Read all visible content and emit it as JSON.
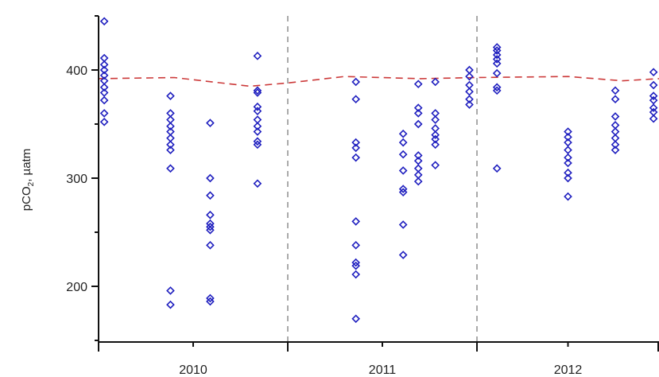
{
  "chart_data": {
    "type": "scatter",
    "title": "",
    "xlabel": "",
    "ylabel": "pCO",
    "ylabel_subscript": "2",
    "ylabel_unit": ", µatm",
    "ylim": [
      150,
      450
    ],
    "y_ticks": [
      200,
      300,
      400
    ],
    "x_periods": [
      "2010",
      "2011",
      "2012"
    ],
    "grid": false,
    "colors": {
      "points": "#1f1fbf",
      "reference_line": "#cc3a3a",
      "period_divider": "#555555",
      "axis": "#111111"
    },
    "series": [
      {
        "marker": "open-diamond",
        "points": [
          {
            "x": 0.03,
            "y": 445
          },
          {
            "x": 0.03,
            "y": 411
          },
          {
            "x": 0.03,
            "y": 405
          },
          {
            "x": 0.03,
            "y": 400
          },
          {
            "x": 0.03,
            "y": 395
          },
          {
            "x": 0.03,
            "y": 390
          },
          {
            "x": 0.03,
            "y": 384
          },
          {
            "x": 0.03,
            "y": 379
          },
          {
            "x": 0.03,
            "y": 372
          },
          {
            "x": 0.03,
            "y": 360
          },
          {
            "x": 0.03,
            "y": 352
          },
          {
            "x": 0.38,
            "y": 376
          },
          {
            "x": 0.38,
            "y": 360
          },
          {
            "x": 0.38,
            "y": 354
          },
          {
            "x": 0.38,
            "y": 348
          },
          {
            "x": 0.38,
            "y": 343
          },
          {
            "x": 0.38,
            "y": 337
          },
          {
            "x": 0.38,
            "y": 331
          },
          {
            "x": 0.38,
            "y": 326
          },
          {
            "x": 0.38,
            "y": 309
          },
          {
            "x": 0.38,
            "y": 196
          },
          {
            "x": 0.38,
            "y": 183
          },
          {
            "x": 0.59,
            "y": 351
          },
          {
            "x": 0.59,
            "y": 300
          },
          {
            "x": 0.59,
            "y": 284
          },
          {
            "x": 0.59,
            "y": 266
          },
          {
            "x": 0.59,
            "y": 258
          },
          {
            "x": 0.59,
            "y": 255
          },
          {
            "x": 0.59,
            "y": 252
          },
          {
            "x": 0.59,
            "y": 238
          },
          {
            "x": 0.59,
            "y": 189
          },
          {
            "x": 0.59,
            "y": 186
          },
          {
            "x": 0.84,
            "y": 413
          },
          {
            "x": 0.84,
            "y": 381
          },
          {
            "x": 0.84,
            "y": 379
          },
          {
            "x": 0.84,
            "y": 366
          },
          {
            "x": 0.84,
            "y": 362
          },
          {
            "x": 0.84,
            "y": 354
          },
          {
            "x": 0.84,
            "y": 348
          },
          {
            "x": 0.84,
            "y": 343
          },
          {
            "x": 0.84,
            "y": 334
          },
          {
            "x": 0.84,
            "y": 331
          },
          {
            "x": 0.84,
            "y": 295
          },
          {
            "x": 1.36,
            "y": 389
          },
          {
            "x": 1.36,
            "y": 373
          },
          {
            "x": 1.36,
            "y": 333
          },
          {
            "x": 1.36,
            "y": 328
          },
          {
            "x": 1.36,
            "y": 319
          },
          {
            "x": 1.36,
            "y": 260
          },
          {
            "x": 1.36,
            "y": 238
          },
          {
            "x": 1.36,
            "y": 222
          },
          {
            "x": 1.36,
            "y": 219
          },
          {
            "x": 1.36,
            "y": 211
          },
          {
            "x": 1.36,
            "y": 170
          },
          {
            "x": 1.61,
            "y": 341
          },
          {
            "x": 1.61,
            "y": 333
          },
          {
            "x": 1.61,
            "y": 322
          },
          {
            "x": 1.61,
            "y": 307
          },
          {
            "x": 1.61,
            "y": 290
          },
          {
            "x": 1.61,
            "y": 287
          },
          {
            "x": 1.61,
            "y": 257
          },
          {
            "x": 1.61,
            "y": 229
          },
          {
            "x": 1.69,
            "y": 387
          },
          {
            "x": 1.69,
            "y": 365
          },
          {
            "x": 1.69,
            "y": 360
          },
          {
            "x": 1.69,
            "y": 350
          },
          {
            "x": 1.69,
            "y": 321
          },
          {
            "x": 1.69,
            "y": 316
          },
          {
            "x": 1.69,
            "y": 309
          },
          {
            "x": 1.69,
            "y": 303
          },
          {
            "x": 1.69,
            "y": 297
          },
          {
            "x": 1.78,
            "y": 389
          },
          {
            "x": 1.78,
            "y": 360
          },
          {
            "x": 1.78,
            "y": 354
          },
          {
            "x": 1.78,
            "y": 346
          },
          {
            "x": 1.78,
            "y": 340
          },
          {
            "x": 1.78,
            "y": 336
          },
          {
            "x": 1.78,
            "y": 331
          },
          {
            "x": 1.78,
            "y": 312
          },
          {
            "x": 1.96,
            "y": 400
          },
          {
            "x": 1.96,
            "y": 394
          },
          {
            "x": 1.96,
            "y": 386
          },
          {
            "x": 1.96,
            "y": 380
          },
          {
            "x": 1.96,
            "y": 373
          },
          {
            "x": 1.96,
            "y": 368
          },
          {
            "x": 2.11,
            "y": 421
          },
          {
            "x": 2.11,
            "y": 418
          },
          {
            "x": 2.11,
            "y": 414
          },
          {
            "x": 2.11,
            "y": 410
          },
          {
            "x": 2.11,
            "y": 406
          },
          {
            "x": 2.11,
            "y": 397
          },
          {
            "x": 2.11,
            "y": 384
          },
          {
            "x": 2.11,
            "y": 381
          },
          {
            "x": 2.11,
            "y": 309
          },
          {
            "x": 2.5,
            "y": 343
          },
          {
            "x": 2.5,
            "y": 338
          },
          {
            "x": 2.5,
            "y": 333
          },
          {
            "x": 2.5,
            "y": 326
          },
          {
            "x": 2.5,
            "y": 319
          },
          {
            "x": 2.5,
            "y": 314
          },
          {
            "x": 2.5,
            "y": 305
          },
          {
            "x": 2.5,
            "y": 300
          },
          {
            "x": 2.5,
            "y": 283
          },
          {
            "x": 2.76,
            "y": 381
          },
          {
            "x": 2.76,
            "y": 373
          },
          {
            "x": 2.76,
            "y": 357
          },
          {
            "x": 2.76,
            "y": 349
          },
          {
            "x": 2.76,
            "y": 343
          },
          {
            "x": 2.76,
            "y": 337
          },
          {
            "x": 2.76,
            "y": 331
          },
          {
            "x": 2.76,
            "y": 326
          },
          {
            "x": 2.97,
            "y": 398
          },
          {
            "x": 2.97,
            "y": 386
          },
          {
            "x": 2.97,
            "y": 376
          },
          {
            "x": 2.97,
            "y": 372
          },
          {
            "x": 2.97,
            "y": 365
          },
          {
            "x": 2.97,
            "y": 361
          },
          {
            "x": 2.97,
            "y": 355
          }
        ]
      }
    ],
    "reference_line": {
      "style": "dashed",
      "points": [
        {
          "x": 0.0,
          "y": 392
        },
        {
          "x": 0.4,
          "y": 393
        },
        {
          "x": 0.8,
          "y": 385
        },
        {
          "x": 1.0,
          "y": 388
        },
        {
          "x": 1.3,
          "y": 394
        },
        {
          "x": 1.7,
          "y": 392
        },
        {
          "x": 2.0,
          "y": 393
        },
        {
          "x": 2.5,
          "y": 394
        },
        {
          "x": 2.8,
          "y": 390
        },
        {
          "x": 3.0,
          "y": 392
        }
      ]
    },
    "period_dividers": [
      1.0,
      2.0
    ]
  }
}
